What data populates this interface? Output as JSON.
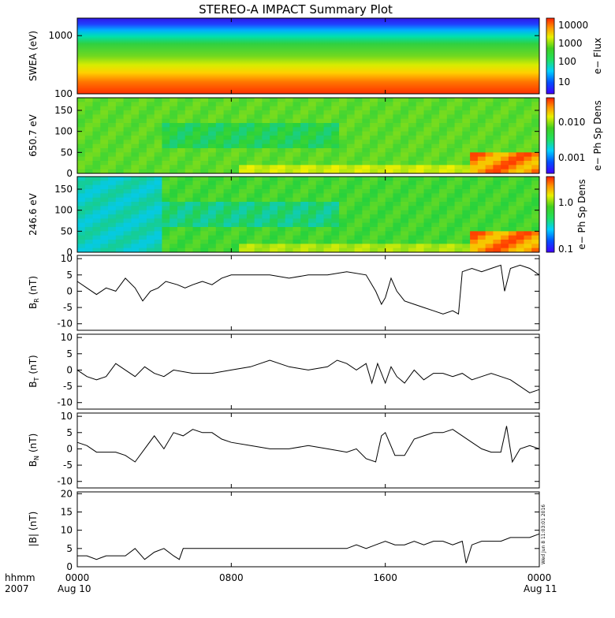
{
  "title": "STEREO-A IMPACT Summary Plot",
  "footer": {
    "time_label": "hhmm",
    "year_label": "2007",
    "x_ticks": [
      "0000",
      "0800",
      "1600",
      "0000"
    ],
    "x_tick_hours": [
      0,
      8,
      16,
      24
    ],
    "date_start": "Aug 10",
    "date_end": "Aug 11",
    "timestamp": "Wed Jun 8 11:03:01 2016"
  },
  "colors": {
    "line": "#000000",
    "spectrogram_low": "#3a1cff",
    "spectrogram_mid": "#33cc33",
    "spectrogram_high": "#ff2a00"
  },
  "chart_data": [
    {
      "type": "heatmap",
      "name": "swea",
      "ylabel": "SWEA (eV)",
      "yscale": "log",
      "ylim": [
        100,
        2000
      ],
      "yticks": [
        "1000",
        "100"
      ],
      "ytick_values": [
        1000,
        100
      ],
      "xlim_hours": [
        0,
        24
      ],
      "colorbar": {
        "label": "e− Flux",
        "scale": "log",
        "ticks": [
          "10000",
          "1000",
          "100",
          "10"
        ]
      }
    },
    {
      "type": "heatmap",
      "name": "pad650",
      "ylabel": "650.7 eV",
      "ylim": [
        0,
        180
      ],
      "yticks": [
        "150",
        "100",
        "50",
        "0"
      ],
      "ytick_values": [
        150,
        100,
        50,
        0
      ],
      "xlim_hours": [
        0,
        24
      ],
      "colorbar": {
        "label": "e− Ph Sp Dens",
        "scale": "log",
        "ticks": [
          "0.010",
          "0.001"
        ]
      }
    },
    {
      "type": "heatmap",
      "name": "pad246",
      "ylabel": "246.6 eV",
      "ylim": [
        0,
        180
      ],
      "yticks": [
        "150",
        "100",
        "50",
        "0"
      ],
      "ytick_values": [
        150,
        100,
        50,
        0
      ],
      "xlim_hours": [
        0,
        24
      ],
      "colorbar": {
        "label": "e− Ph Sp Dens",
        "scale": "log",
        "ticks": [
          "1.0",
          "0.1"
        ]
      }
    },
    {
      "type": "line",
      "name": "br",
      "ylabel": "B",
      "ylabel_sub": "R",
      "ylabel_unit": "(nT)",
      "ylim": [
        -12,
        11
      ],
      "yticks": [
        "10",
        "5",
        "0",
        "-5",
        "-10"
      ],
      "ytick_values": [
        10,
        5,
        0,
        -5,
        -10
      ],
      "x": [
        0,
        0.5,
        1.0,
        1.5,
        2.0,
        2.5,
        3.0,
        3.4,
        3.8,
        4.2,
        4.6,
        5.2,
        5.6,
        6.0,
        6.5,
        7.0,
        7.5,
        8.0,
        9.0,
        10.0,
        11.0,
        12.0,
        13.0,
        14.0,
        15.0,
        15.5,
        15.8,
        16.0,
        16.3,
        16.6,
        17.0,
        17.5,
        18.0,
        18.5,
        19.0,
        19.5,
        19.8,
        20.0,
        20.5,
        21.0,
        21.5,
        22.0,
        22.2,
        22.5,
        23.0,
        23.5,
        24.0
      ],
      "values": [
        3,
        1,
        -1,
        1,
        0,
        4,
        1,
        -3,
        0,
        1,
        3,
        2,
        1,
        2,
        3,
        2,
        4,
        5,
        5,
        5,
        4,
        5,
        5,
        6,
        5,
        0,
        -4,
        -2,
        4,
        0,
        -3,
        -4,
        -5,
        -6,
        -7,
        -6,
        -7,
        6,
        7,
        6,
        7,
        8,
        0,
        7,
        8,
        7,
        5
      ]
    },
    {
      "type": "line",
      "name": "bt",
      "ylabel": "B",
      "ylabel_sub": "T",
      "ylabel_unit": "(nT)",
      "ylim": [
        -12,
        11
      ],
      "yticks": [
        "10",
        "5",
        "0",
        "-5",
        "-10"
      ],
      "ytick_values": [
        10,
        5,
        0,
        -5,
        -10
      ],
      "x": [
        0,
        0.5,
        1.0,
        1.5,
        2.0,
        2.5,
        3.0,
        3.5,
        4.0,
        4.5,
        5.0,
        6.0,
        7.0,
        8.0,
        9.0,
        10.0,
        11.0,
        12.0,
        13.0,
        13.5,
        14.0,
        14.5,
        15.0,
        15.3,
        15.6,
        16.0,
        16.3,
        16.6,
        17.0,
        17.5,
        18.0,
        18.5,
        19.0,
        19.5,
        20.0,
        20.5,
        21.0,
        21.5,
        22.0,
        22.5,
        23.0,
        23.5,
        24.0
      ],
      "values": [
        0,
        -2,
        -3,
        -2,
        2,
        0,
        -2,
        1,
        -1,
        -2,
        0,
        -1,
        -1,
        0,
        1,
        3,
        1,
        0,
        1,
        3,
        2,
        0,
        2,
        -4,
        2,
        -4,
        1,
        -2,
        -4,
        0,
        -3,
        -1,
        -1,
        -2,
        -1,
        -3,
        -2,
        -1,
        -2,
        -3,
        -5,
        -7,
        -6
      ]
    },
    {
      "type": "line",
      "name": "bn",
      "ylabel": "B",
      "ylabel_sub": "N",
      "ylabel_unit": "(nT)",
      "ylim": [
        -12,
        11
      ],
      "yticks": [
        "10",
        "5",
        "0",
        "-5",
        "-10"
      ],
      "ytick_values": [
        10,
        5,
        0,
        -5,
        -10
      ],
      "x": [
        0,
        0.5,
        1.0,
        1.5,
        2.0,
        2.5,
        3.0,
        3.5,
        4.0,
        4.5,
        5.0,
        5.5,
        6.0,
        6.5,
        7.0,
        7.5,
        8.0,
        9.0,
        10.0,
        11.0,
        12.0,
        13.0,
        14.0,
        14.5,
        15.0,
        15.5,
        15.8,
        16.0,
        16.5,
        17.0,
        17.5,
        18.0,
        18.5,
        19.0,
        19.5,
        20.0,
        20.5,
        21.0,
        21.5,
        22.0,
        22.3,
        22.6,
        23.0,
        23.5,
        24.0
      ],
      "values": [
        2,
        1,
        -1,
        -1,
        -1,
        -2,
        -4,
        0,
        4,
        0,
        5,
        4,
        6,
        5,
        5,
        3,
        2,
        1,
        0,
        0,
        1,
        0,
        -1,
        0,
        -3,
        -4,
        4,
        5,
        -2,
        -2,
        3,
        4,
        5,
        5,
        6,
        4,
        2,
        0,
        -1,
        -1,
        7,
        -4,
        0,
        1,
        0
      ]
    },
    {
      "type": "line",
      "name": "bmag",
      "ylabel": "|B|",
      "ylabel_unit": "(nT)",
      "ylim": [
        0,
        20.5
      ],
      "yticks": [
        "20",
        "15",
        "10",
        "5",
        "0"
      ],
      "ytick_values": [
        20,
        15,
        10,
        5,
        0
      ],
      "x": [
        0,
        0.5,
        1.0,
        1.5,
        2.0,
        2.5,
        3.0,
        3.5,
        4.0,
        4.5,
        5.0,
        5.3,
        5.5,
        6.0,
        7.0,
        8.0,
        9.0,
        10.0,
        11.0,
        12.0,
        13.0,
        14.0,
        14.5,
        15.0,
        15.5,
        16.0,
        16.5,
        17.0,
        17.5,
        18.0,
        18.5,
        19.0,
        19.5,
        20.0,
        20.2,
        20.5,
        21.0,
        21.5,
        22.0,
        22.5,
        23.0,
        23.5,
        24.0
      ],
      "values": [
        3,
        3,
        2,
        3,
        3,
        3,
        5,
        2,
        4,
        5,
        3,
        2,
        5,
        5,
        5,
        5,
        5,
        5,
        5,
        5,
        5,
        5,
        6,
        5,
        6,
        7,
        6,
        6,
        7,
        6,
        7,
        7,
        6,
        7,
        1,
        6,
        7,
        7,
        7,
        8,
        8,
        8,
        9
      ]
    }
  ]
}
